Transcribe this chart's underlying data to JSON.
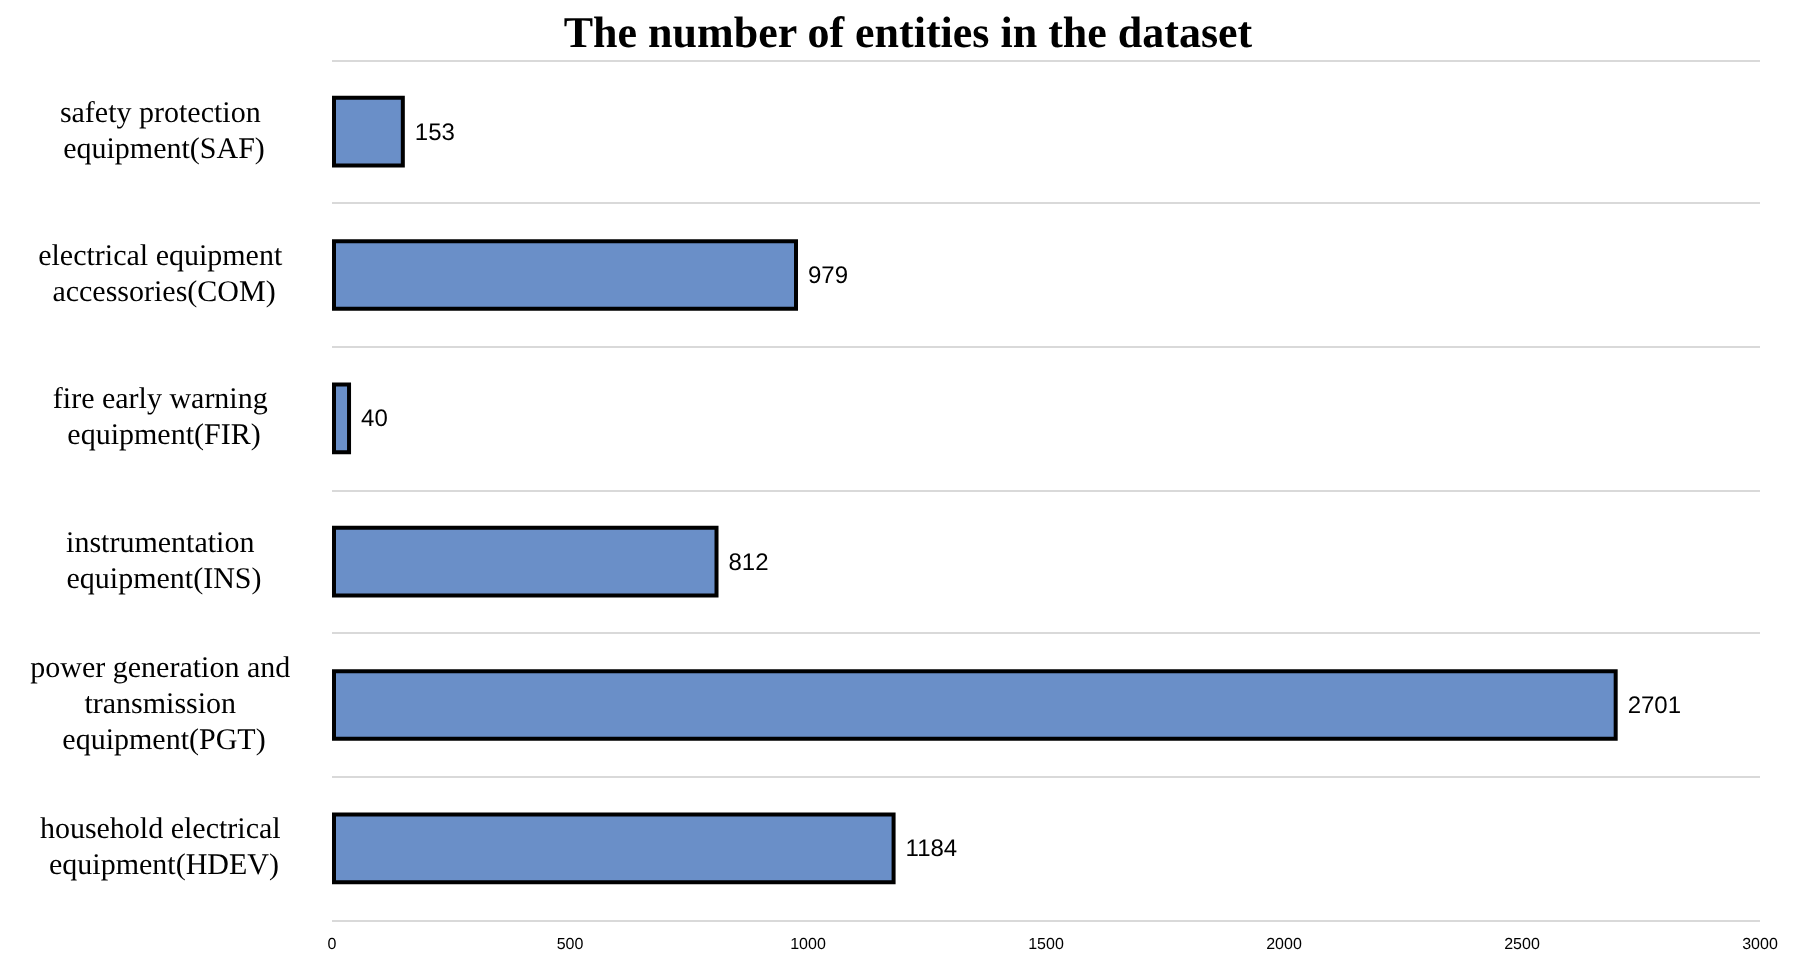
{
  "chart_data": {
    "type": "bar",
    "title": "The number of entities in the dataset",
    "orientation": "horizontal",
    "categories": [
      "safety protection equipment(SAF)",
      "electrical equipment accessories(COM)",
      "fire early warning equipment(FIR)",
      "instrumentation equipment(INS)",
      "power generation and transmission equipment(PGT)",
      "household electrical equipment(HDEV)"
    ],
    "values": [
      153,
      979,
      40,
      812,
      2701,
      1184
    ],
    "color": "#6a8fc8",
    "xlim": [
      0,
      3000
    ],
    "xticks": [
      0,
      500,
      1000,
      1500,
      2000,
      2500,
      3000
    ],
    "data_labels": true,
    "grid": "y"
  }
}
